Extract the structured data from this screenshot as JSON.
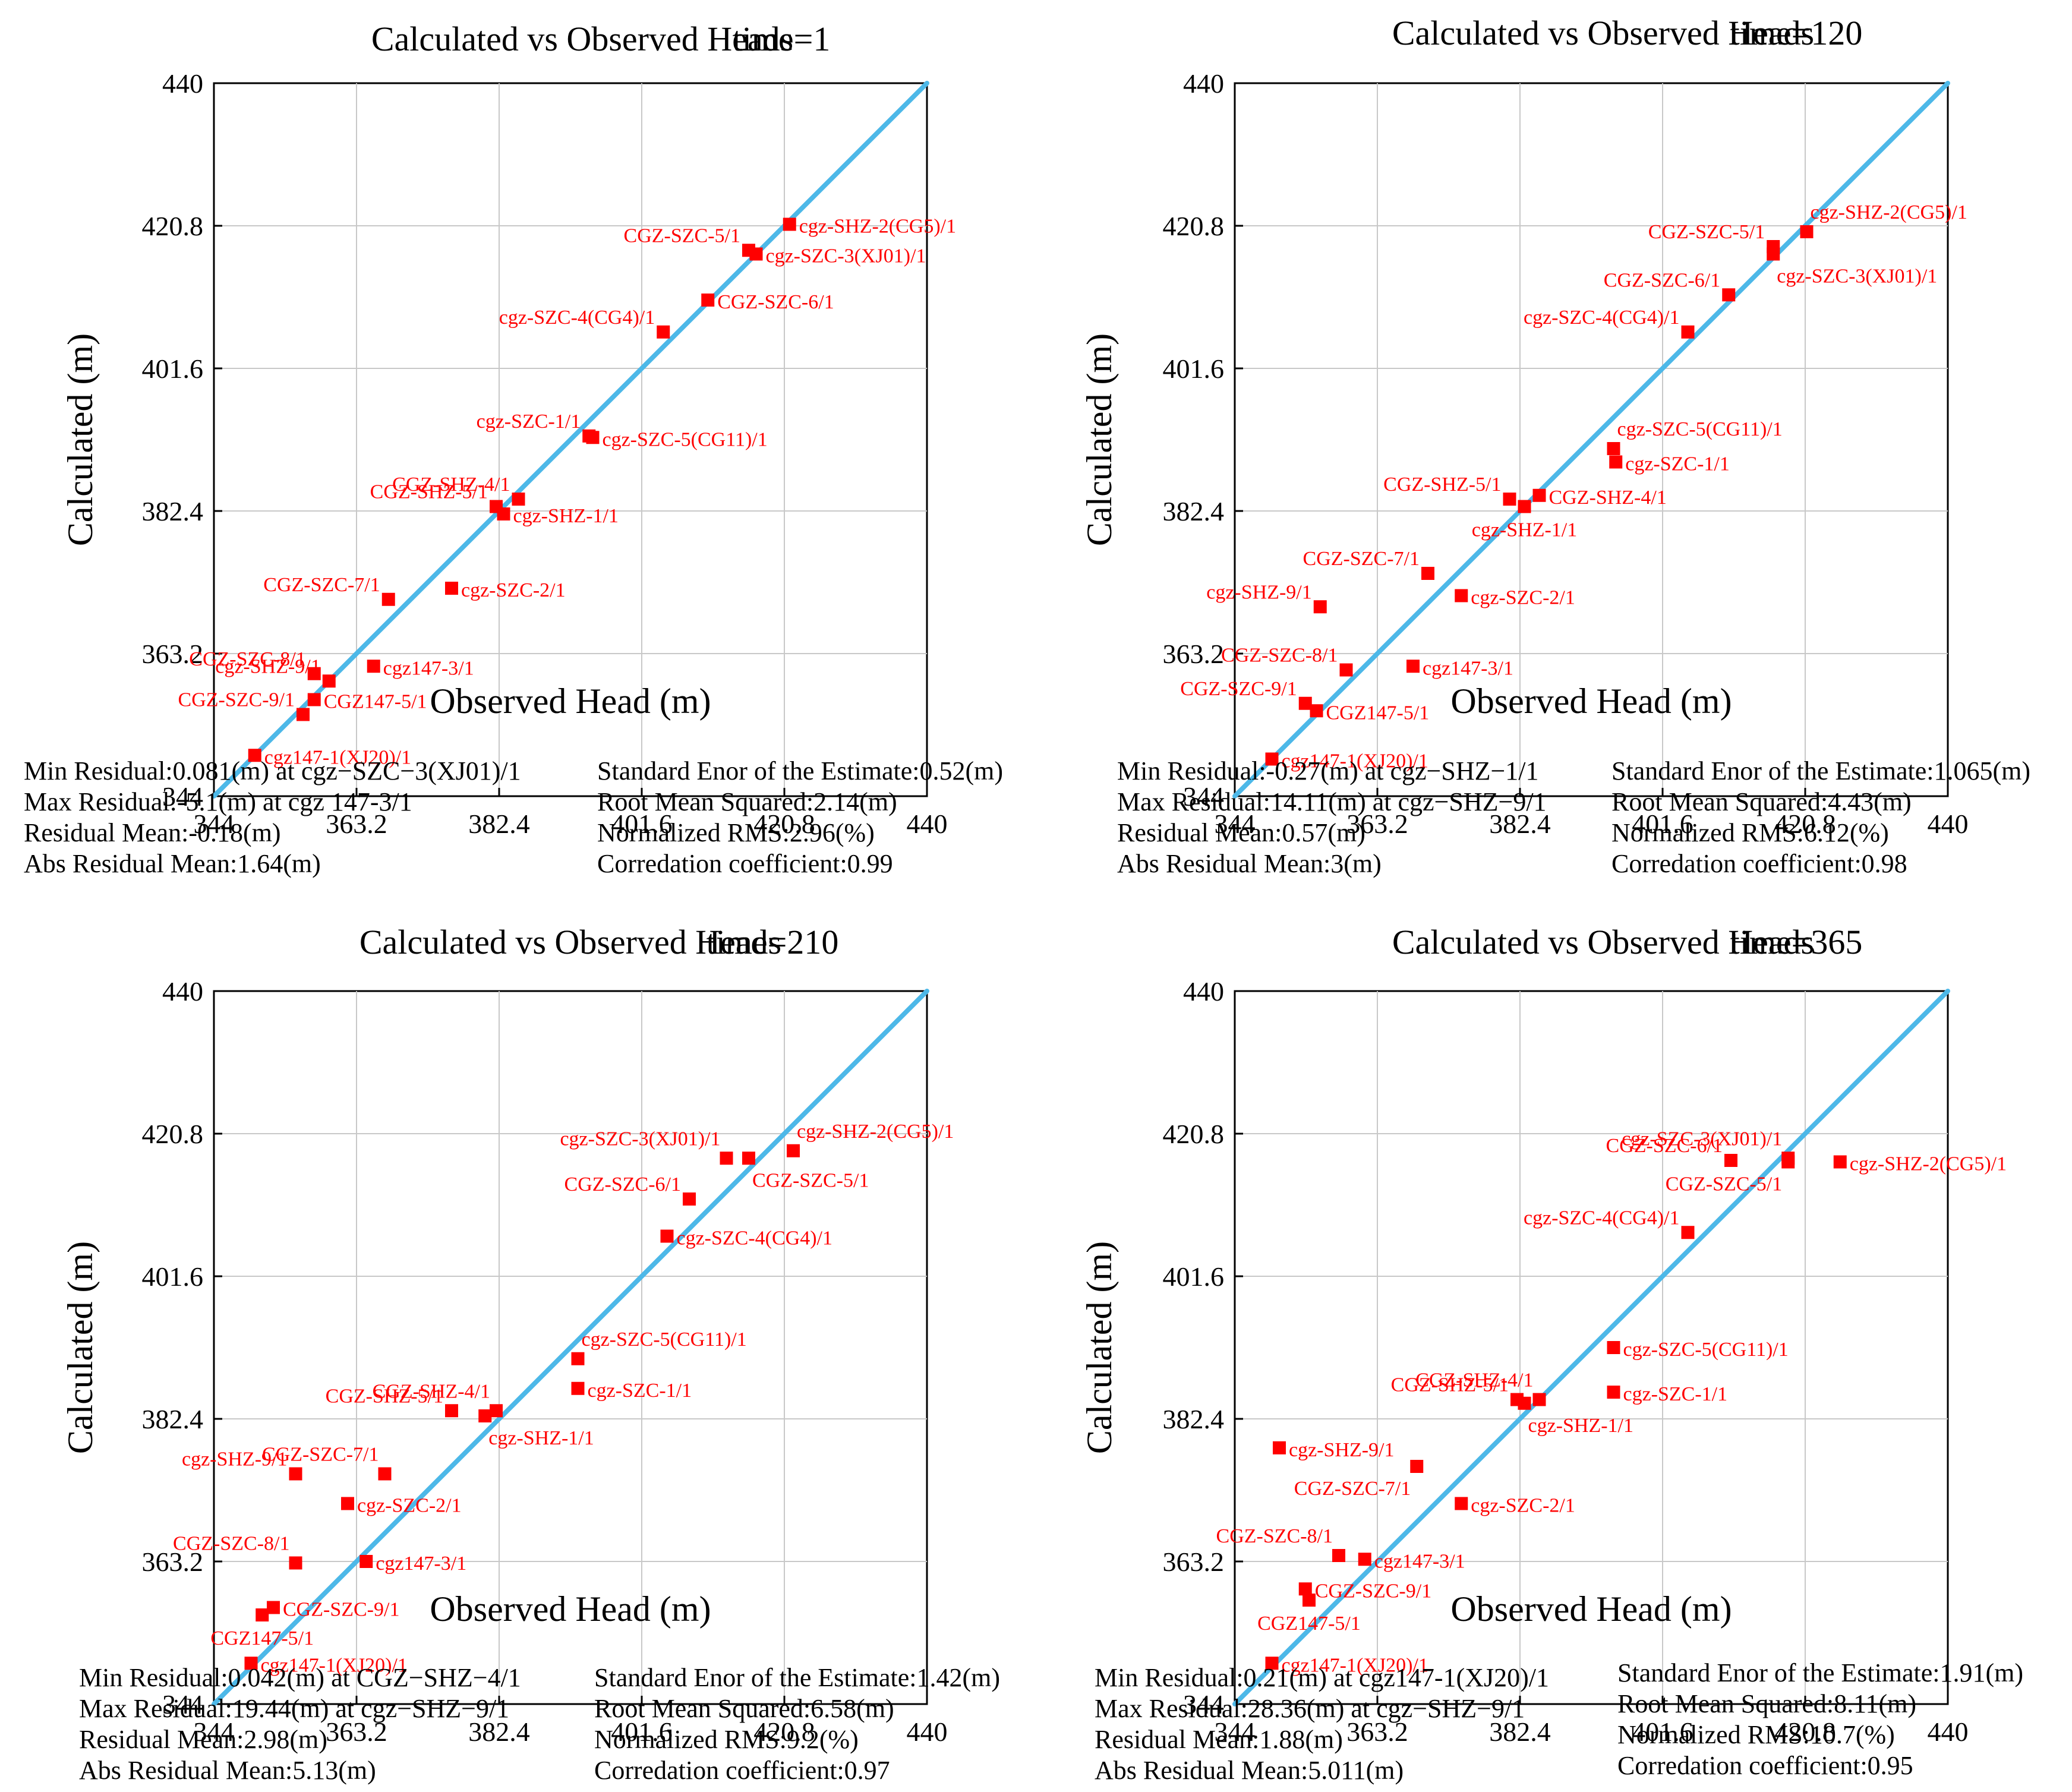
{
  "colors": {
    "marker": "#ff0000",
    "label": "#ff0000",
    "line": "#4db8e8",
    "grid": "#c8c8c8",
    "axis": "#000000"
  },
  "chart_data": [
    {
      "type": "scatter",
      "title": "Calculated vs Observed Heads",
      "time_label": "time=1",
      "xlabel": "Observed Head (m)",
      "ylabel": "Calculated (m)",
      "xlim": [
        344,
        440
      ],
      "ylim": [
        344,
        440
      ],
      "ticks": [
        "344",
        "363.2",
        "382.4",
        "401.6",
        "420.8",
        "440"
      ],
      "grid": true,
      "identity_line": true,
      "points": [
        {
          "name": "cgz-SHZ-2(CG5)/1",
          "x": 421.5,
          "y": 421.0,
          "anchor": "right"
        },
        {
          "name": "CGZ-SZC-5/1",
          "x": 416.0,
          "y": 417.5,
          "anchor": "left"
        },
        {
          "name": "cgz-SZC-3(XJ01)/1",
          "x": 417.0,
          "y": 417.0,
          "anchor": "right"
        },
        {
          "name": "CGZ-SZC-6/1",
          "x": 410.5,
          "y": 410.8,
          "anchor": "right"
        },
        {
          "name": "cgz-SZC-4(CG4)/1",
          "x": 404.5,
          "y": 406.5,
          "anchor": "left"
        },
        {
          "name": "cgz-SZC-1/1",
          "x": 394.5,
          "y": 392.5,
          "anchor": "left"
        },
        {
          "name": "cgz-SZC-5(CG11)/1",
          "x": 395.0,
          "y": 392.3,
          "anchor": "right"
        },
        {
          "name": "CGZ-SHZ-4/1",
          "x": 385.0,
          "y": 384.0,
          "anchor": "left"
        },
        {
          "name": "CGZ-SHZ-5/1",
          "x": 382.0,
          "y": 383.0,
          "anchor": "left"
        },
        {
          "name": "cgz-SHZ-1/1",
          "x": 383.0,
          "y": 382.0,
          "anchor": "right"
        },
        {
          "name": "CGZ-SZC-7/1",
          "x": 367.5,
          "y": 370.5,
          "anchor": "left"
        },
        {
          "name": "cgz-SZC-2/1",
          "x": 376.0,
          "y": 372.0,
          "anchor": "right"
        },
        {
          "name": "cgz147-3/1",
          "x": 365.5,
          "y": 361.5,
          "anchor": "right"
        },
        {
          "name": "CGZ-SZC-8/1",
          "x": 357.5,
          "y": 360.5,
          "anchor": "left"
        },
        {
          "name": "cgz-SHZ-9/1",
          "x": 359.5,
          "y": 359.5,
          "anchor": "left"
        },
        {
          "name": "CGZ-SZC-9/1",
          "x": 356.0,
          "y": 355.0,
          "anchor": "left"
        },
        {
          "name": "CGZ147-5/1",
          "x": 357.5,
          "y": 357.0,
          "anchor": "right"
        },
        {
          "name": "cgz147-1(XJ20)/1",
          "x": 349.5,
          "y": 349.5,
          "anchor": "right"
        }
      ],
      "stats": {
        "left": [
          "Min Residual:0.081(m) at cgz−SZC−3(XJ01)/1",
          "Max Residual:-5.1(m) at cgz 147-3/1",
          "Residual Mean:-0.18(m)",
          "Abs Residual Mean:1.64(m)"
        ],
        "right": [
          "Standard Enor of the Estimate:0.52(m)",
          "Root Mean Squared:2.14(m)",
          "Normalized RMS:2.96(%)",
          "Corredation coefficient:0.99"
        ]
      }
    },
    {
      "type": "scatter",
      "title": "Calculated vs Observed Heads",
      "time_label": "time=120",
      "xlabel": "Observed Head (m)",
      "ylabel": "Calculated (m)",
      "xlim": [
        344,
        440
      ],
      "ylim": [
        344,
        440
      ],
      "ticks": [
        "344",
        "363.2",
        "382.4",
        "401.6",
        "420.8",
        "440"
      ],
      "grid": true,
      "identity_line": true,
      "points": [
        {
          "name": "cgz-SHZ-2(CG5)/1",
          "x": 421.0,
          "y": 420.0,
          "anchor": "aboveright"
        },
        {
          "name": "CGZ-SZC-5/1",
          "x": 416.5,
          "y": 418.0,
          "anchor": "left"
        },
        {
          "name": "cgz-SZC-3(XJ01)/1",
          "x": 416.5,
          "y": 417.0,
          "anchor": "belowright"
        },
        {
          "name": "CGZ-SZC-6/1",
          "x": 410.5,
          "y": 411.5,
          "anchor": "left"
        },
        {
          "name": "cgz-SZC-4(CG4)/1",
          "x": 405.0,
          "y": 406.5,
          "anchor": "left"
        },
        {
          "name": "cgz-SZC-5(CG11)/1",
          "x": 395.0,
          "y": 390.8,
          "anchor": "aboveright"
        },
        {
          "name": "cgz-SZC-1/1",
          "x": 395.3,
          "y": 389.0,
          "anchor": "right"
        },
        {
          "name": "CGZ-SHZ-5/1",
          "x": 381.0,
          "y": 384.0,
          "anchor": "left"
        },
        {
          "name": "CGZ-SHZ-4/1",
          "x": 385.0,
          "y": 384.5,
          "anchor": "right"
        },
        {
          "name": "cgz-SHZ-1/1",
          "x": 383.0,
          "y": 383.0,
          "anchor": "below"
        },
        {
          "name": "CGZ-SZC-7/1",
          "x": 370.0,
          "y": 374.0,
          "anchor": "left"
        },
        {
          "name": "cgz-SHZ-9/1",
          "x": 355.5,
          "y": 369.5,
          "anchor": "left"
        },
        {
          "name": "cgz-SZC-2/1",
          "x": 374.5,
          "y": 371.0,
          "anchor": "right"
        },
        {
          "name": "CGZ-SZC-8/1",
          "x": 359.0,
          "y": 361.0,
          "anchor": "left"
        },
        {
          "name": "cgz147-3/1",
          "x": 368.0,
          "y": 361.5,
          "anchor": "right"
        },
        {
          "name": "CGZ-SZC-9/1",
          "x": 353.5,
          "y": 356.5,
          "anchor": "left"
        },
        {
          "name": "CGZ147-5/1",
          "x": 355.0,
          "y": 355.5,
          "anchor": "right"
        },
        {
          "name": "cgz147-1(XJ20)/1",
          "x": 349.0,
          "y": 349.0,
          "anchor": "right"
        }
      ],
      "stats": {
        "left": [
          "Min Residual:-0.27(m) at cgz−SHZ−1/1",
          "Max Residual:14.11(m) at cgz−SHZ−9/1",
          "Residual Mean:0.57(m)",
          "Abs Residual Mean:3(m)"
        ],
        "right": [
          "Standard Enor of the Estimate:1.065(m)",
          "Root Mean Squared:4.43(m)",
          "Normalized RMS:6.12(%)",
          "Corredation coefficient:0.98"
        ]
      }
    },
    {
      "type": "scatter",
      "title": "Calculated vs Observed Heads",
      "time_label": "time=210",
      "xlabel": "Observed Head (m)",
      "ylabel": "Calculated (m)",
      "xlim": [
        344,
        440
      ],
      "ylim": [
        344,
        440
      ],
      "ticks": [
        "344",
        "363.2",
        "382.4",
        "401.6",
        "420.8",
        "440"
      ],
      "grid": true,
      "identity_line": true,
      "points": [
        {
          "name": "cgz-SHZ-2(CG5)/1",
          "x": 422.0,
          "y": 418.5,
          "anchor": "aboveright"
        },
        {
          "name": "cgz-SZC-3(XJ01)/1",
          "x": 413.0,
          "y": 417.5,
          "anchor": "aboveleft"
        },
        {
          "name": "CGZ-SZC-5/1",
          "x": 416.0,
          "y": 417.5,
          "anchor": "belowright"
        },
        {
          "name": "CGZ-SZC-6/1",
          "x": 408.0,
          "y": 412.0,
          "anchor": "left"
        },
        {
          "name": "cgz-SZC-4(CG4)/1",
          "x": 405.0,
          "y": 407.0,
          "anchor": "right"
        },
        {
          "name": "cgz-SZC-5(CG11)/1",
          "x": 393.0,
          "y": 390.5,
          "anchor": "aboveright"
        },
        {
          "name": "cgz-SZC-1/1",
          "x": 393.0,
          "y": 386.5,
          "anchor": "right"
        },
        {
          "name": "CGZ-SHZ-4/1",
          "x": 382.0,
          "y": 383.5,
          "anchor": "aboveleft"
        },
        {
          "name": "CGZ-SHZ-5/1",
          "x": 376.0,
          "y": 383.5,
          "anchor": "left"
        },
        {
          "name": "cgz-SHZ-1/1",
          "x": 380.5,
          "y": 382.8,
          "anchor": "belowright"
        },
        {
          "name": "cgz-SHZ-9/1",
          "x": 355.0,
          "y": 375.0,
          "anchor": "left"
        },
        {
          "name": "CGZ-SZC-7/1",
          "x": 367.0,
          "y": 375.0,
          "anchor": "aboveleft"
        },
        {
          "name": "cgz-SZC-2/1",
          "x": 362.0,
          "y": 371.0,
          "anchor": "right"
        },
        {
          "name": "CGZ-SZC-8/1",
          "x": 355.0,
          "y": 363.0,
          "anchor": "aboveleft"
        },
        {
          "name": "cgz147-3/1",
          "x": 364.5,
          "y": 363.2,
          "anchor": "right"
        },
        {
          "name": "CGZ-SZC-9/1",
          "x": 352.0,
          "y": 357.0,
          "anchor": "right"
        },
        {
          "name": "CGZ147-5/1",
          "x": 350.5,
          "y": 356.0,
          "anchor": "below"
        },
        {
          "name": "cgz147-1(XJ20)/1",
          "x": 349.0,
          "y": 349.5,
          "anchor": "right"
        }
      ],
      "stats": {
        "left": [
          "Min Residual:0.042(m) at CGZ−SHZ−4/1",
          "Max Residual:19.44(m) at cgz−SHZ−9/1",
          "Residual Mean:2.98(m)",
          "Abs Residual Mean:5.13(m)"
        ],
        "right": [
          "Standard Enor of the Estimate:1.42(m)",
          "Root Mean Squared:6.58(m)",
          "Normalized RMS:9.2(%)",
          "Corredation coefficient:0.97"
        ]
      }
    },
    {
      "type": "scatter",
      "title": "Calculated vs Observed Heads",
      "time_label": "time=365",
      "xlabel": "Observed Head (m)",
      "ylabel": "Calculated (m)",
      "xlim": [
        344,
        440
      ],
      "ylim": [
        344,
        440
      ],
      "ticks": [
        "344",
        "363.2",
        "382.4",
        "401.6",
        "420.8",
        "440"
      ],
      "grid": true,
      "identity_line": true,
      "points": [
        {
          "name": "cgz-SHZ-2(CG5)/1",
          "x": 425.5,
          "y": 417.0,
          "anchor": "right"
        },
        {
          "name": "cgz-SZC-3(XJ01)/1",
          "x": 418.5,
          "y": 417.5,
          "anchor": "aboveleft"
        },
        {
          "name": "CGZ-SZC-5/1",
          "x": 418.5,
          "y": 417.0,
          "anchor": "belowleft"
        },
        {
          "name": "CGZ-SZC-6/1",
          "x": 410.8,
          "y": 417.2,
          "anchor": "left"
        },
        {
          "name": "cgz-SZC-4(CG4)/1",
          "x": 405.0,
          "y": 407.5,
          "anchor": "left"
        },
        {
          "name": "cgz-SZC-5(CG11)/1",
          "x": 395.0,
          "y": 392.0,
          "anchor": "right"
        },
        {
          "name": "cgz-SZC-1/1",
          "x": 395.0,
          "y": 386.0,
          "anchor": "right"
        },
        {
          "name": "CGZ-SHZ-4/1",
          "x": 385.0,
          "y": 385.0,
          "anchor": "aboveleft"
        },
        {
          "name": "CGZ-SHZ-5/1",
          "x": 382.0,
          "y": 385.0,
          "anchor": "left"
        },
        {
          "name": "cgz-SHZ-1/1",
          "x": 383.0,
          "y": 384.5,
          "anchor": "belowright"
        },
        {
          "name": "cgz-SHZ-9/1",
          "x": 350.0,
          "y": 378.5,
          "anchor": "right"
        },
        {
          "name": "CGZ-SZC-7/1",
          "x": 368.5,
          "y": 376.0,
          "anchor": "belowleft"
        },
        {
          "name": "cgz-SZC-2/1",
          "x": 374.5,
          "y": 371.0,
          "anchor": "right"
        },
        {
          "name": "CGZ-SZC-8/1",
          "x": 358.0,
          "y": 364.0,
          "anchor": "aboveleft"
        },
        {
          "name": "cgz147-3/1",
          "x": 361.5,
          "y": 363.5,
          "anchor": "right"
        },
        {
          "name": "CGZ-SZC-9/1",
          "x": 353.5,
          "y": 359.5,
          "anchor": "right"
        },
        {
          "name": "CGZ147-5/1",
          "x": 354.0,
          "y": 358.0,
          "anchor": "below"
        },
        {
          "name": "cgz147-1(XJ20)/1",
          "x": 349.0,
          "y": 349.5,
          "anchor": "right"
        }
      ],
      "stats": {
        "left": [
          "Min Residual:0.21(m) at cgz147-1(XJ20)/1",
          "Max Residual:28.36(m) at cgz−SHZ−9/1",
          "Residual Mean:1.88(m)",
          "Abs Residual Mean:5.011(m)"
        ],
        "right": [
          "Standard Enor of the Estimate:1.91(m)",
          "Root Mean Squared:8.11(m)",
          "Normalized RMS:10.7(%)",
          "Corredation coefficient:0.95"
        ]
      }
    }
  ]
}
